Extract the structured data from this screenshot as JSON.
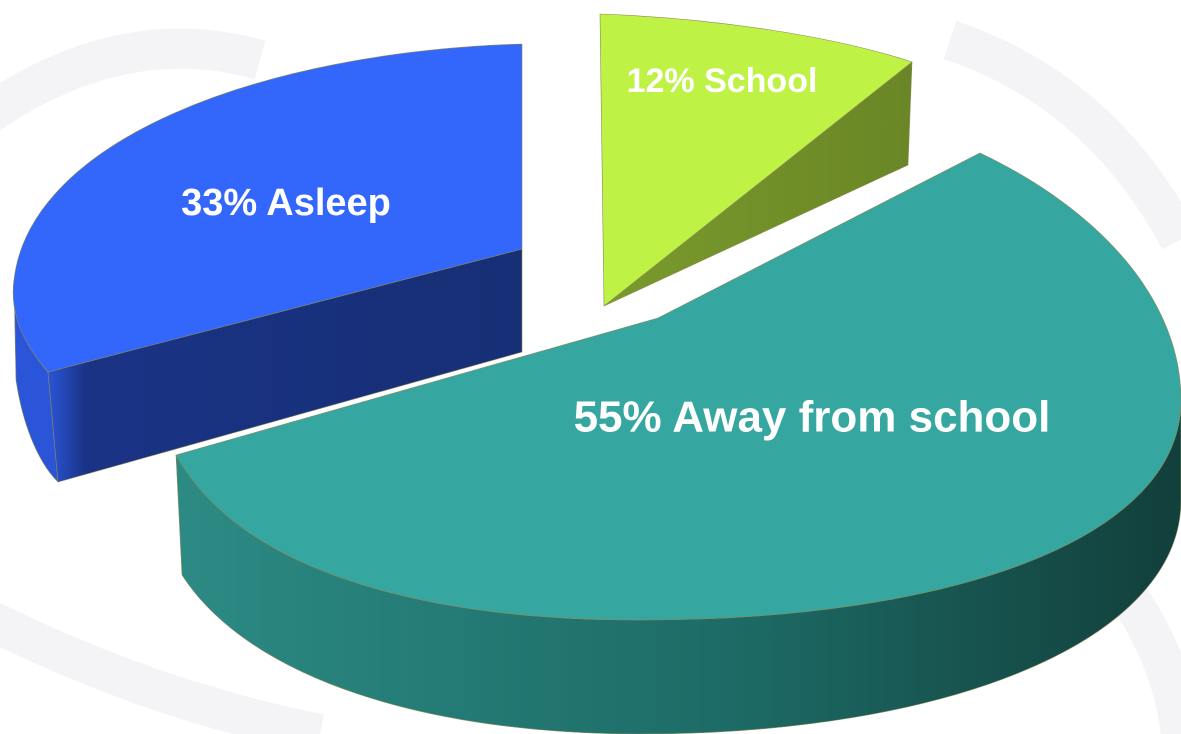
{
  "chart_data": {
    "type": "pie",
    "title": "",
    "slices": [
      {
        "label": "12% School",
        "value": 12,
        "top_color": "#bef244",
        "side_color": "#73922a"
      },
      {
        "label": "55% Away from school",
        "value": 55,
        "top_color": "#35a7a0",
        "side_color": "#1b6660"
      },
      {
        "label": "33% Asleep",
        "value": 33,
        "top_color": "#3366fa",
        "side_color": "#172f75"
      }
    ],
    "style": "3d-exploded",
    "legend": "none"
  }
}
